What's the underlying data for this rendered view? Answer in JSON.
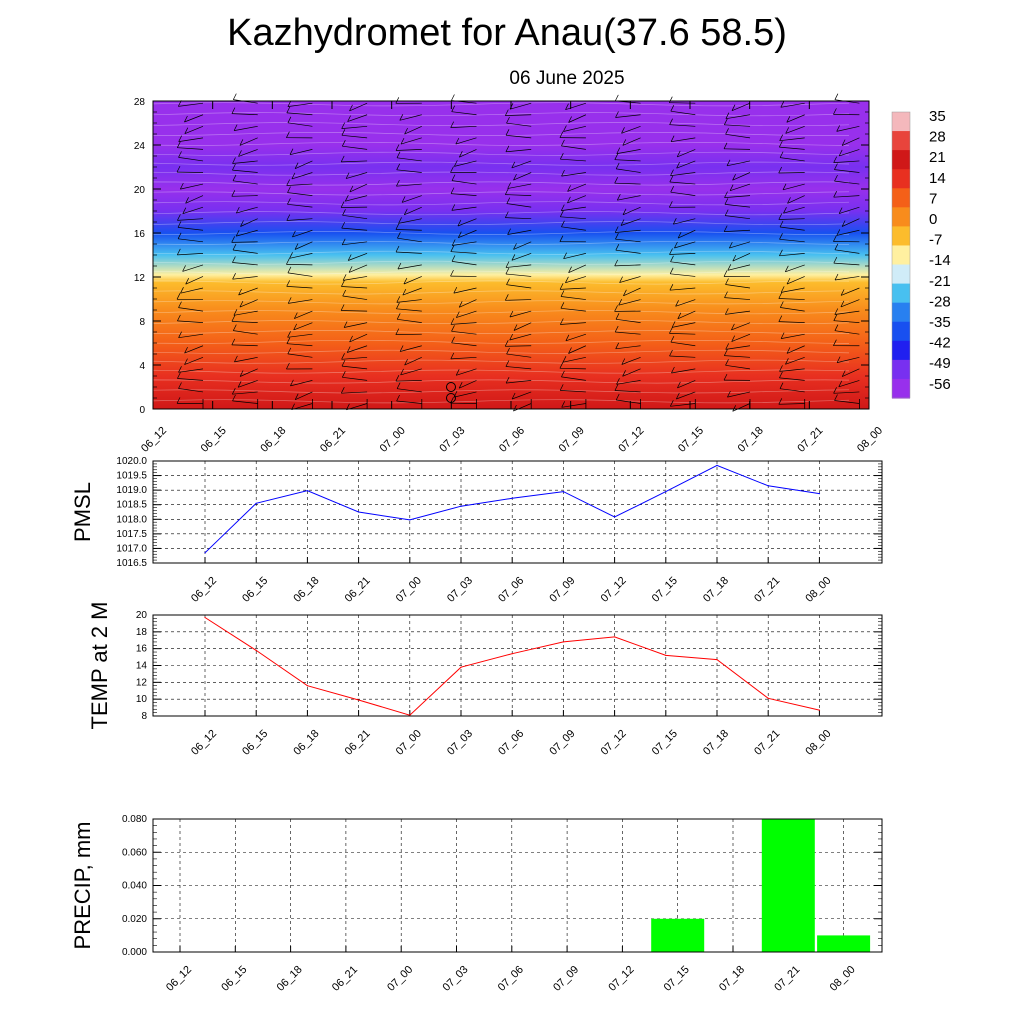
{
  "header": {
    "title": "Kazhydromet for Anau(37.6 58.5)",
    "date": "06 June 2025"
  },
  "chart_data": [
    {
      "type": "heatmap",
      "title": "",
      "x_ticks": [
        "06_12",
        "06_15",
        "06_18",
        "06_21",
        "07_00",
        "07_03",
        "07_06",
        "07_09",
        "07_12",
        "07_15",
        "07_18",
        "07_21",
        "08_00"
      ],
      "y_ticks": [
        "0",
        "4",
        "8",
        "12",
        "16",
        "20",
        "24",
        "28"
      ],
      "ylim": [
        0,
        28
      ],
      "y_profile": [
        {
          "height": 0,
          "value": 24
        },
        {
          "height": 3,
          "value": 17
        },
        {
          "height": 6,
          "value": 10
        },
        {
          "height": 9,
          "value": 3
        },
        {
          "height": 11.5,
          "value": -9
        },
        {
          "height": 12.2,
          "value": -15
        },
        {
          "height": 14,
          "value": -26
        },
        {
          "height": 16,
          "value": -38
        },
        {
          "height": 18,
          "value": -50
        },
        {
          "height": 20,
          "value": -58
        },
        {
          "height": 22,
          "value": -55
        },
        {
          "height": 24,
          "value": -60
        },
        {
          "height": 28,
          "value": -60
        }
      ],
      "colorbar": {
        "labels": [
          "35",
          "28",
          "21",
          "14",
          "7",
          "0",
          "-7",
          "-14",
          "-21",
          "-28",
          "-35",
          "-42",
          "-49",
          "-56"
        ],
        "colors": [
          "#f4b8bc",
          "#e8443c",
          "#d01818",
          "#e83020",
          "#f46018",
          "#f88c1c",
          "#fcbc2c",
          "#fff0a0",
          "#d0ecf8",
          "#48c0f0",
          "#2880f0",
          "#1850f0",
          "#2020f0",
          "#7830f0",
          "#9830ec"
        ]
      },
      "wind_barbs": true,
      "grid": false
    },
    {
      "type": "line",
      "ylabel": "PMSL",
      "ylim": [
        1016.5,
        1020.0
      ],
      "y_ticks": [
        "1016.5",
        "1017.0",
        "1017.5",
        "1018.0",
        "1018.5",
        "1019.0",
        "1019.5",
        "1020.0"
      ],
      "categories": [
        "06_12",
        "06_15",
        "06_18",
        "06_21",
        "07_00",
        "07_03",
        "07_06",
        "07_09",
        "07_12",
        "07_15",
        "07_18",
        "07_21",
        "08_00"
      ],
      "series": [
        {
          "values": [
            1016.85,
            1018.55,
            1018.98,
            1018.25,
            1017.98,
            1018.45,
            1018.72,
            1018.95,
            1018.08,
            1018.95,
            1019.85,
            1019.15,
            1018.88
          ],
          "color": "#0000ff"
        }
      ],
      "grid": true
    },
    {
      "type": "line",
      "ylabel": "TEMP at 2 M",
      "ylim": [
        8,
        20
      ],
      "y_ticks": [
        "8",
        "10",
        "12",
        "14",
        "16",
        "18",
        "20"
      ],
      "categories": [
        "06_12",
        "06_15",
        "06_18",
        "06_21",
        "07_00",
        "07_03",
        "07_06",
        "07_09",
        "07_12",
        "07_15",
        "07_18",
        "07_21",
        "08_00"
      ],
      "series": [
        {
          "values": [
            19.7,
            15.8,
            11.6,
            9.9,
            8.1,
            13.8,
            15.4,
            16.8,
            17.4,
            15.2,
            14.7,
            10.1,
            8.7
          ],
          "color": "#ff0000"
        }
      ],
      "grid": true
    },
    {
      "type": "bar",
      "ylabel": "PRECIP, mm",
      "ylim": [
        0,
        0.08
      ],
      "y_ticks": [
        "0.000",
        "0.020",
        "0.040",
        "0.060",
        "0.080"
      ],
      "categories": [
        "06_12",
        "06_15",
        "06_18",
        "06_21",
        "07_00",
        "07_03",
        "07_06",
        "07_09",
        "07_12",
        "07_15",
        "07_18",
        "07_21",
        "08_00"
      ],
      "values": [
        0,
        0,
        0,
        0,
        0,
        0,
        0,
        0,
        0,
        0.02,
        0,
        0.08,
        0.01
      ],
      "color": "#00ff00",
      "grid": true
    }
  ]
}
